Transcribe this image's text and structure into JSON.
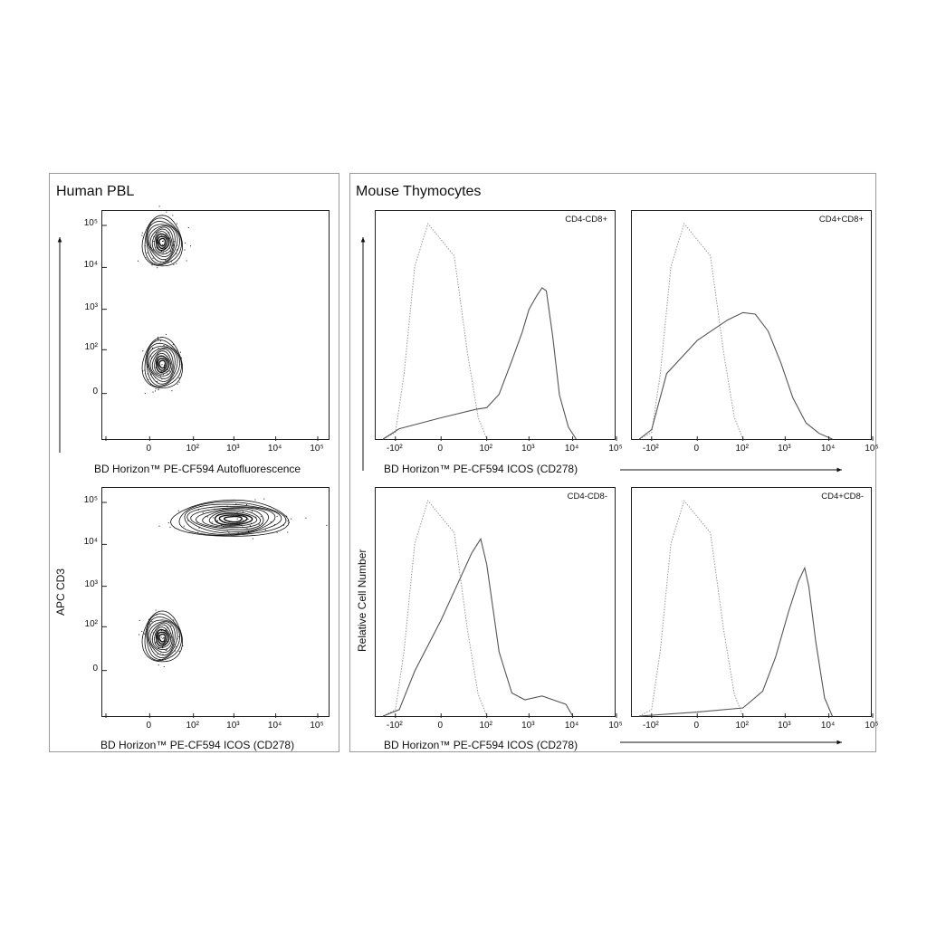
{
  "left_panel": {
    "title": "Human PBL",
    "y_axis_label": "APC  CD3",
    "top_plot": {
      "xlabel": "BD Horizon™ PE-CF594 Autofluorescence"
    },
    "bottom_plot": {
      "xlabel": "BD Horizon™ PE-CF594 ICOS (CD278)"
    },
    "x_ticks": [
      "0",
      "10²",
      "10³",
      "10⁴",
      "10⁵"
    ],
    "y_ticks": [
      "10⁵",
      "10⁴",
      "10³",
      "10²",
      "0"
    ]
  },
  "right_panel": {
    "title": "Mouse Thymocytes",
    "y_axis_label": "Relative Cell Number",
    "top_xlabel": "BD Horizon™ PE-CF594 ICOS (CD278)",
    "bottom_xlabel": "BD Horizon™ PE-CF594 ICOS (CD278)",
    "x_ticks": [
      "-10²",
      "0",
      "10²",
      "10³",
      "10⁴",
      "10⁵"
    ],
    "subplots": [
      {
        "label": "CD4-CD8+"
      },
      {
        "label": "CD4+CD8+"
      },
      {
        "label": "CD4-CD8-"
      },
      {
        "label": "CD4+CD8-"
      }
    ]
  },
  "chart_data": [
    {
      "type": "contour",
      "xlabel": "BD Horizon™ PE-CF594 Autofluorescence",
      "ylabel": "APC  CD3",
      "scale": "biexponential",
      "xlim": [
        -100,
        100000
      ],
      "ylim": [
        -100,
        100000
      ],
      "populations": [
        {
          "x_center": 10,
          "y_center": 40000,
          "kind": "CD3+"
        },
        {
          "x_center": 10,
          "y_center": 40,
          "kind": "CD3-"
        }
      ]
    },
    {
      "type": "contour",
      "xlabel": "BD Horizon™ PE-CF594 ICOS (CD278)",
      "ylabel": "APC  CD3",
      "scale": "biexponential",
      "xlim": [
        -100,
        100000
      ],
      "ylim": [
        -100,
        100000
      ],
      "populations": [
        {
          "x_center": 1000,
          "y_center": 40000,
          "kind": "CD3+"
        },
        {
          "x_center": 10,
          "y_center": 50,
          "kind": "CD3-"
        }
      ]
    },
    {
      "type": "histogram",
      "label": "CD4-CD8+",
      "xlabel": "BD Horizon™ PE-CF594 ICOS (CD278)",
      "ylabel": "Relative Cell Number",
      "series": [
        {
          "style": "dotted",
          "points": [
            [
              -200,
              0
            ],
            [
              -100,
              0.03
            ],
            [
              -60,
              0.3
            ],
            [
              -30,
              0.8
            ],
            [
              -10,
              1.0
            ],
            [
              10,
              0.85
            ],
            [
              30,
              0.4
            ],
            [
              60,
              0.1
            ],
            [
              100,
              0
            ]
          ]
        },
        {
          "style": "solid",
          "points": [
            [
              -200,
              0
            ],
            [
              -80,
              0.05
            ],
            [
              0,
              0.1
            ],
            [
              50,
              0.14
            ],
            [
              100,
              0.14
            ],
            [
              200,
              0.2
            ],
            [
              400,
              0.36
            ],
            [
              700,
              0.5
            ],
            [
              1000,
              0.6
            ],
            [
              1500,
              0.67
            ],
            [
              2000,
              0.7
            ],
            [
              2500,
              0.68
            ],
            [
              3500,
              0.48
            ],
            [
              5000,
              0.2
            ],
            [
              8000,
              0.06
            ],
            [
              12000,
              0
            ]
          ]
        }
      ]
    },
    {
      "type": "histogram",
      "label": "CD4+CD8+",
      "xlabel": "BD Horizon™ PE-CF594 ICOS (CD278)",
      "ylabel": "Relative Cell Number",
      "series": [
        {
          "style": "dotted",
          "points": [
            [
              -200,
              0
            ],
            [
              -100,
              0.03
            ],
            [
              -60,
              0.3
            ],
            [
              -30,
              0.8
            ],
            [
              -10,
              1.0
            ],
            [
              10,
              0.85
            ],
            [
              30,
              0.4
            ],
            [
              60,
              0.1
            ],
            [
              100,
              0
            ]
          ]
        },
        {
          "style": "solid",
          "points": [
            [
              -200,
              0
            ],
            [
              -100,
              0.05
            ],
            [
              -40,
              0.3
            ],
            [
              0,
              0.45
            ],
            [
              40,
              0.56
            ],
            [
              100,
              0.59
            ],
            [
              200,
              0.58
            ],
            [
              400,
              0.5
            ],
            [
              800,
              0.35
            ],
            [
              1500,
              0.2
            ],
            [
              3000,
              0.07
            ],
            [
              6000,
              0.02
            ],
            [
              12000,
              0
            ]
          ]
        }
      ]
    },
    {
      "type": "histogram",
      "label": "CD4-CD8-",
      "xlabel": "BD Horizon™ PE-CF594 ICOS (CD278)",
      "ylabel": "Relative Cell Number",
      "series": [
        {
          "style": "dotted",
          "points": [
            [
              -200,
              0
            ],
            [
              -100,
              0.03
            ],
            [
              -60,
              0.3
            ],
            [
              -30,
              0.8
            ],
            [
              -10,
              1.0
            ],
            [
              10,
              0.85
            ],
            [
              30,
              0.4
            ],
            [
              60,
              0.1
            ],
            [
              100,
              0
            ]
          ]
        },
        {
          "style": "solid",
          "points": [
            [
              -200,
              0
            ],
            [
              -80,
              0.03
            ],
            [
              -30,
              0.2
            ],
            [
              0,
              0.45
            ],
            [
              40,
              0.75
            ],
            [
              70,
              0.82
            ],
            [
              100,
              0.7
            ],
            [
              200,
              0.3
            ],
            [
              400,
              0.1
            ],
            [
              800,
              0.08
            ],
            [
              2000,
              0.09
            ],
            [
              4000,
              0.08
            ],
            [
              7000,
              0.05
            ],
            [
              10000,
              0
            ]
          ]
        }
      ]
    },
    {
      "type": "histogram",
      "label": "CD4+CD8-",
      "xlabel": "BD Horizon™ PE-CF594 ICOS (CD278)",
      "ylabel": "Relative Cell Number",
      "series": [
        {
          "style": "dotted",
          "points": [
            [
              -200,
              0
            ],
            [
              -100,
              0.03
            ],
            [
              -60,
              0.3
            ],
            [
              -30,
              0.8
            ],
            [
              -10,
              1.0
            ],
            [
              10,
              0.85
            ],
            [
              30,
              0.4
            ],
            [
              60,
              0.1
            ],
            [
              100,
              0
            ]
          ]
        },
        {
          "style": "solid",
          "points": [
            [
              -200,
              0
            ],
            [
              0,
              0.02
            ],
            [
              100,
              0.04
            ],
            [
              300,
              0.12
            ],
            [
              600,
              0.28
            ],
            [
              1200,
              0.48
            ],
            [
              2000,
              0.62
            ],
            [
              2800,
              0.69
            ],
            [
              3500,
              0.6
            ],
            [
              5000,
              0.35
            ],
            [
              8000,
              0.08
            ],
            [
              12000,
              0
            ]
          ]
        }
      ]
    }
  ]
}
